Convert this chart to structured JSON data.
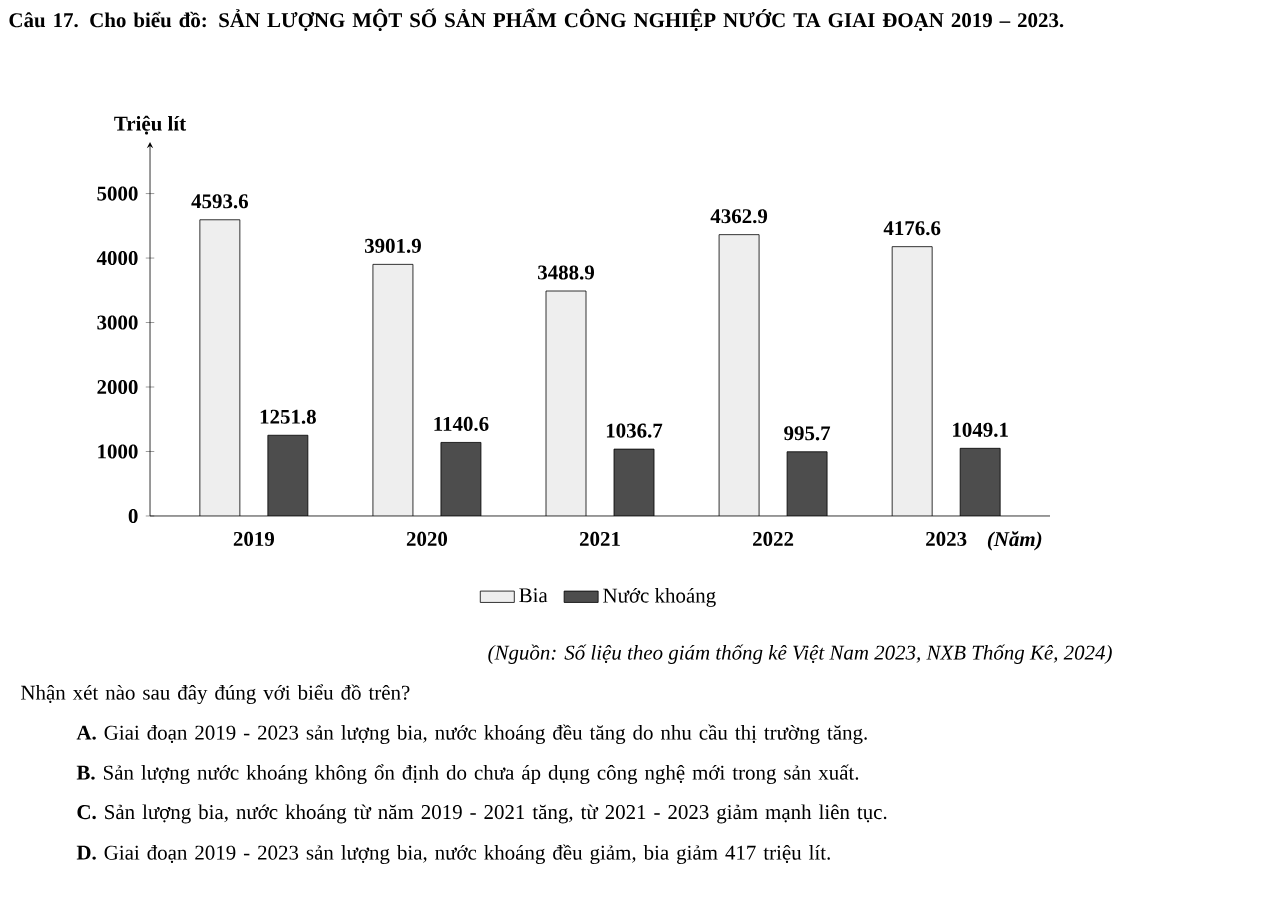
{
  "chart_data": {
    "type": "bar",
    "title": "Câu 17. Cho biểu đồ: SẢN LƯỢNG MỘT SỐ SẢN PHẨM CÔNG NGHIỆP NƯỚC TA GIAI ĐOẠN 2019 – 2023.",
    "ylabel": "Triệu lít",
    "xlabel": "(Năm)",
    "categories": [
      "2019",
      "2020",
      "2021",
      "2022",
      "2023"
    ],
    "series": [
      {
        "name": "Bia",
        "color": "#eeeeee",
        "values": [
          4593.6,
          3901.9,
          3488.9,
          4362.9,
          4176.6
        ]
      },
      {
        "name": "Nước khoáng",
        "color": "#4d4d4d",
        "values": [
          1251.8,
          1140.6,
          1036.7,
          995.7,
          1049.1
        ]
      }
    ],
    "ylim": [
      0,
      5800
    ],
    "yticks": [
      0,
      1000,
      2000,
      3000,
      4000,
      5000
    ],
    "data_labels": true,
    "legend": "bottom",
    "annotations": [
      "(Nguồn: Số liệu theo giám thống kê Việt Nam 2023, NXB Thống Kê, 2024)",
      "Nhận xét nào sau đây đúng với biểu đồ trên?",
      "**A.** Giai đoạn 2019 - 2023 sản lượng bia, nước khoáng đều tăng do nhu cầu thị trường tăng.",
      "**B.** Sản lượng nước khoáng không ổn định do chưa áp dụng công nghệ mới trong sản xuất.",
      "**C.** Sản lượng bia, nước khoáng từ năm 2019 - 2021 tăng, từ 2021 - 2023 giảm mạnh liên tục.",
      "**D.** Giai đoạn 2019 - 2023 sản lượng bia, nước khoáng đều giảm, bia giảm 417 triệu lít."
    ]
  }
}
